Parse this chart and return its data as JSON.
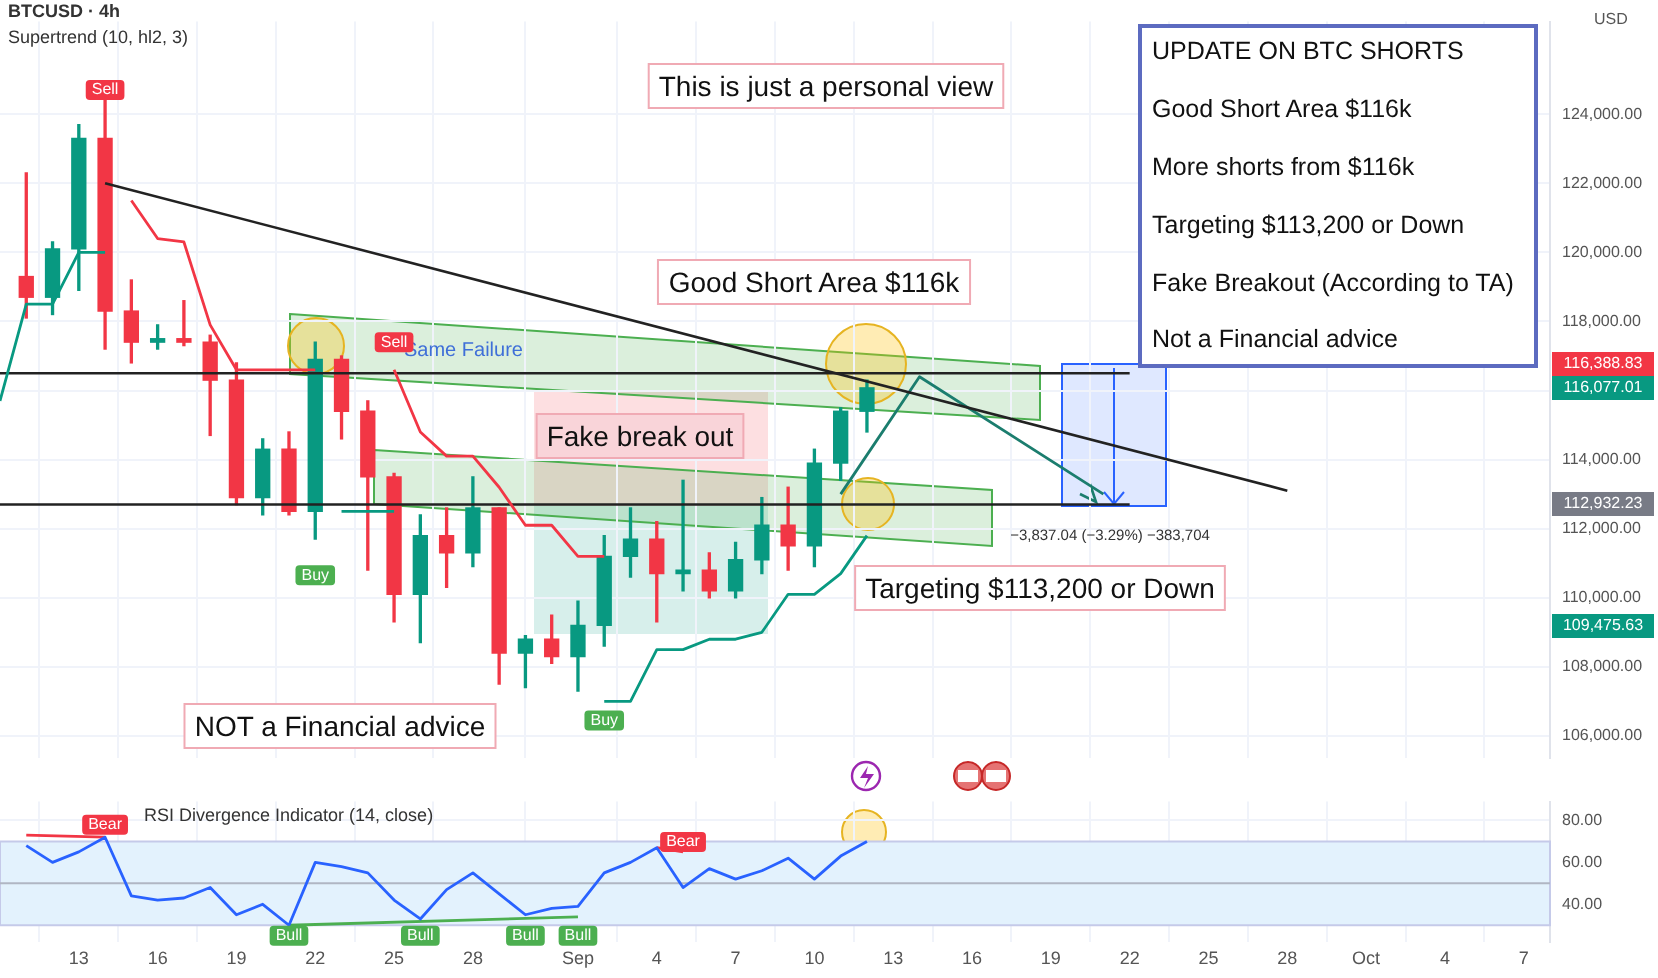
{
  "chart_data": [
    {
      "type": "candlestick",
      "x": [
        "--08-11",
        "--08-12",
        "--08-13",
        "--08-14",
        "--08-15",
        "--08-16",
        "--08-17",
        "--08-18",
        "--08-19",
        "--08-20",
        "--08-21",
        "--08-22",
        "--08-23",
        "--08-24",
        "--08-25",
        "--08-26",
        "--08-27",
        "--08-28",
        "--08-29",
        "--08-30",
        "--08-31",
        "--09-01",
        "--09-02",
        "--09-03",
        "--09-04",
        "--09-05",
        "--09-06",
        "--09-07",
        "--09-08",
        "--09-09",
        "--09-10",
        "--09-11",
        "--09-12"
      ],
      "ohlc": [
        [
          119300,
          122300,
          118100,
          118700
        ],
        [
          118700,
          120300,
          118200,
          120100
        ],
        [
          120100,
          123700,
          118900,
          123300
        ],
        [
          123300,
          124400,
          117200,
          118300
        ],
        [
          118300,
          119200,
          116800,
          117400
        ],
        [
          117400,
          117900,
          117200,
          117500
        ],
        [
          117500,
          118600,
          117300,
          117400
        ],
        [
          117400,
          117600,
          114700,
          116300
        ],
        [
          116300,
          116800,
          112700,
          112900
        ],
        [
          112900,
          114600,
          112400,
          114300
        ],
        [
          114300,
          114800,
          112400,
          112500
        ],
        [
          112500,
          117400,
          111700,
          116900
        ],
        [
          116900,
          117000,
          114600,
          115400
        ],
        [
          115400,
          115700,
          110800,
          113500
        ],
        [
          113500,
          113600,
          109300,
          110100
        ],
        [
          110100,
          112400,
          108700,
          111800
        ],
        [
          111800,
          112600,
          110300,
          111300
        ],
        [
          111300,
          113500,
          110900,
          112600
        ],
        [
          112600,
          112600,
          107500,
          108400
        ],
        [
          108400,
          108900,
          107400,
          108800
        ],
        [
          108800,
          109500,
          108100,
          108300
        ],
        [
          108300,
          109900,
          107300,
          109200
        ],
        [
          109200,
          111800,
          108600,
          111200
        ],
        [
          111200,
          112600,
          110600,
          111700
        ],
        [
          111700,
          112200,
          109300,
          110700
        ],
        [
          110700,
          113400,
          110200,
          110800
        ],
        [
          110800,
          111300,
          110000,
          110200
        ],
        [
          110200,
          111600,
          110000,
          111100
        ],
        [
          111100,
          112900,
          110700,
          112100
        ],
        [
          112100,
          113200,
          110800,
          111500
        ],
        [
          111500,
          114300,
          110900,
          113900
        ],
        [
          113900,
          115500,
          113400,
          115400
        ],
        [
          115400,
          116300,
          114800,
          116077
        ]
      ],
      "colors": [
        "#f23645",
        "#089981",
        "#089981",
        "#f23645",
        "#f23645",
        "#089981",
        "#f23645",
        "#f23645",
        "#f23645",
        "#089981",
        "#f23645",
        "#089981",
        "#f23645",
        "#f23645",
        "#f23645",
        "#089981",
        "#f23645",
        "#089981",
        "#f23645",
        "#089981",
        "#f23645",
        "#089981",
        "#089981",
        "#089981",
        "#f23645",
        "#089981",
        "#f23645",
        "#089981",
        "#089981",
        "#f23645",
        "#089981",
        "#089981",
        "#089981"
      ],
      "series": [
        {
          "type": "line",
          "color": "#089981",
          "x": [
            "--08-10",
            "--08-11",
            "--08-12",
            "--08-13",
            "--08-14"
          ],
          "values": [
            115700,
            118500,
            118500,
            120000,
            120000
          ]
        },
        {
          "type": "line",
          "color": "#f23645",
          "x": [
            "--08-15",
            "--08-16",
            "--08-17",
            "--08-18",
            "--08-19",
            "--08-20",
            "--08-21",
            "--08-22"
          ],
          "values": [
            121500,
            120400,
            120300,
            117900,
            116600,
            116600,
            116600,
            116600
          ]
        },
        {
          "type": "line",
          "color": "#089981",
          "x": [
            "--08-23",
            "--08-24",
            "--08-25"
          ],
          "values": [
            112500,
            112500,
            112500
          ]
        },
        {
          "type": "line",
          "color": "#f23645",
          "x": [
            "--08-25",
            "--08-26",
            "--08-27",
            "--08-28",
            "--08-29",
            "--08-30",
            "--08-31",
            "--09-01",
            "--09-02"
          ],
          "values": [
            116600,
            114800,
            114100,
            114100,
            113200,
            112100,
            112100,
            111200,
            111200
          ]
        },
        {
          "type": "line",
          "color": "#089981",
          "x": [
            "--09-02",
            "--09-03",
            "--09-04",
            "--09-05",
            "--09-06",
            "--09-07",
            "--09-08",
            "--09-09",
            "--09-10",
            "--09-11",
            "--09-12"
          ],
          "values": [
            107000,
            107000,
            108500,
            108500,
            108800,
            108800,
            109000,
            110100,
            110100,
            110700,
            111800
          ]
        },
        {
          "type": "line",
          "color": "#222222",
          "x": [
            "--08-14",
            "--09-28"
          ],
          "values": [
            122000,
            113100
          ]
        },
        {
          "type": "line",
          "color": "#222222",
          "x": [
            "--08-10",
            "--09-22"
          ],
          "values": [
            116500,
            116500
          ]
        },
        {
          "type": "line",
          "color": "#222222",
          "x": [
            "--08-10",
            "--09-22"
          ],
          "values": [
            112700,
            112700
          ]
        },
        {
          "type": "line",
          "color": "#1b7d6e",
          "x": [
            "--09-11",
            "--09-14",
            "--09-21"
          ],
          "values": [
            113000,
            116400,
            113000
          ]
        }
      ],
      "xlim": [
        "--08-10",
        "--10-08"
      ],
      "xticks": [
        {
          "value": "--08-13",
          "label": null
        },
        {
          "value": "--08-16",
          "label": null
        },
        {
          "value": "--08-19",
          "label": null
        },
        {
          "value": "--08-22",
          "label": null
        },
        {
          "value": "--08-25",
          "label": null
        },
        {
          "value": "--08-28",
          "label": null
        },
        {
          "value": "--09-01",
          "label": null
        },
        {
          "value": "--09-04",
          "label": null
        },
        {
          "value": "--09-07",
          "label": null
        },
        {
          "value": "--09-10",
          "label": null
        },
        {
          "value": "--09-13",
          "label": null
        },
        {
          "value": "--09-16",
          "label": null
        },
        {
          "value": "--09-19",
          "label": null
        },
        {
          "value": "--09-22",
          "label": null
        },
        {
          "value": "--09-25",
          "label": null
        },
        {
          "value": "--09-28",
          "label": null
        },
        {
          "value": "--10-01",
          "label": null
        },
        {
          "value": "--10-04",
          "label": null
        },
        {
          "value": "--10-07",
          "label": null
        }
      ],
      "ylim": [
        105350,
        126680
      ],
      "yticks": [
        {
          "value": 106000,
          "label": "106,000.00"
        },
        {
          "value": 108000,
          "label": "108,000.00"
        },
        {
          "value": 110000,
          "label": "110,000.00"
        },
        {
          "value": 112000,
          "label": "112,000.00"
        },
        {
          "value": 114000,
          "label": "114,000.00"
        },
        {
          "value": 116000,
          "label": null
        },
        {
          "value": 118000,
          "label": "118,000.00"
        },
        {
          "value": 120000,
          "label": "120,000.00"
        },
        {
          "value": 122000,
          "label": "122,000.00"
        },
        {
          "value": 124000,
          "label": "124,000.00"
        }
      ],
      "tick_labels": "y",
      "grid": true,
      "marker": "none",
      "annotations": [
        "BTCUSD · 4h",
        "Supertrend (10, hl2, 3)",
        "This is just a personal view",
        "Good Short Area $116k",
        "Fake break out",
        "Targeting $113,200 or Down",
        "NOT a Financial advice",
        "Same Failure",
        "UPDATE ON BTC SHORTS",
        "Good Short Area $116k",
        "More shorts from $116k",
        "Targeting $113,200 or Down",
        "Fake Breakout (According to TA)",
        "Not a Financial advice",
        "−3,837.04 (−3.29%) −383,704",
        "USD",
        {
          "text": "Sell",
          "x": "--08-14",
          "y": 124700
        },
        {
          "text": "Sell",
          "x": "--08-25",
          "y": 117400
        },
        {
          "text": "Buy",
          "x": "--08-22",
          "y": 110650
        },
        {
          "text": "Buy",
          "x": "--09-02",
          "y": 106450
        },
        "116,388.83",
        "116,077.01",
        "112,932.23",
        "109,475.63"
      ]
    },
    {
      "type": "line",
      "x": [
        "--08-11",
        "--08-12",
        "--08-13",
        "--08-14",
        "--08-15",
        "--08-16",
        "--08-17",
        "--08-18",
        "--08-19",
        "--08-20",
        "--08-21",
        "--08-22",
        "--08-23",
        "--08-24",
        "--08-25",
        "--08-26",
        "--08-27",
        "--08-28",
        "--08-29",
        "--08-30",
        "--08-31",
        "--09-01",
        "--09-02",
        "--09-03",
        "--09-04",
        "--09-05",
        "--09-06",
        "--09-07",
        "--09-08",
        "--09-09",
        "--09-10",
        "--09-11",
        "--09-12"
      ],
      "series": [
        {
          "color": "#2962ff",
          "values": [
            68,
            60,
            65,
            72,
            44,
            42,
            43,
            48,
            35,
            40,
            30,
            60,
            58,
            55,
            42,
            33,
            47,
            55,
            45,
            35,
            38,
            39,
            55,
            60,
            67,
            48,
            57,
            52,
            56,
            62,
            52,
            63,
            70
          ]
        },
        {
          "color": "#f23645",
          "x": [
            "--08-11",
            "--08-14"
          ],
          "values": [
            73,
            72
          ]
        },
        {
          "color": "#4caf50",
          "x": [
            "--08-21",
            "--09-01"
          ],
          "values": [
            30,
            34
          ]
        },
        {
          "color": "#f23645",
          "x": [
            "--09-04",
            "--09-05"
          ],
          "values": [
            67,
            65
          ]
        }
      ],
      "xlim": [
        "--08-10",
        "--10-08"
      ],
      "xticks": [
        {
          "value": "--08-13",
          "label": "13"
        },
        {
          "value": "--08-16",
          "label": "16"
        },
        {
          "value": "--08-19",
          "label": "19"
        },
        {
          "value": "--08-22",
          "label": "22"
        },
        {
          "value": "--08-25",
          "label": "25"
        },
        {
          "value": "--08-28",
          "label": "28"
        },
        {
          "value": "--09-01",
          "label": "Sep"
        },
        {
          "value": "--09-04",
          "label": "4"
        },
        {
          "value": "--09-07",
          "label": "7"
        },
        {
          "value": "--09-10",
          "label": "10"
        },
        {
          "value": "--09-13",
          "label": "13"
        },
        {
          "value": "--09-16",
          "label": "16"
        },
        {
          "value": "--09-19",
          "label": "19"
        },
        {
          "value": "--09-22",
          "label": "22"
        },
        {
          "value": "--09-25",
          "label": "25"
        },
        {
          "value": "--09-28",
          "label": "28"
        },
        {
          "value": "--10-01",
          "label": "Oct"
        },
        {
          "value": "--10-04",
          "label": "4"
        },
        {
          "value": "--10-07",
          "label": "7"
        }
      ],
      "ylim": [
        22,
        89
      ],
      "yticks": [
        {
          "value": 40,
          "label": "40.00"
        },
        {
          "value": 60,
          "label": "60.00"
        },
        {
          "value": 80,
          "label": "80.00"
        }
      ],
      "bands": [
        {
          "axis": "y",
          "from": 30,
          "to": 70,
          "color": "#e3f2fd"
        }
      ],
      "ref_lines": [
        {
          "axis": "y",
          "value": 50,
          "color": "#b0b6c3"
        }
      ],
      "grid": true,
      "marker": "none",
      "annotations": [
        "RSI Divergence Indicator (14, close)",
        {
          "text": "Bear",
          "x": "--08-14",
          "y": 78
        },
        {
          "text": "Bear",
          "x": "--09-05",
          "y": 69.7
        },
        {
          "text": "Bull",
          "x": "--08-21",
          "y": 25
        },
        {
          "text": "Bull",
          "x": "--08-26",
          "y": 25
        },
        {
          "text": "Bull",
          "x": "--08-30",
          "y": 25
        },
        {
          "text": "Bull",
          "x": "--09-01",
          "y": 25
        }
      ]
    }
  ]
}
